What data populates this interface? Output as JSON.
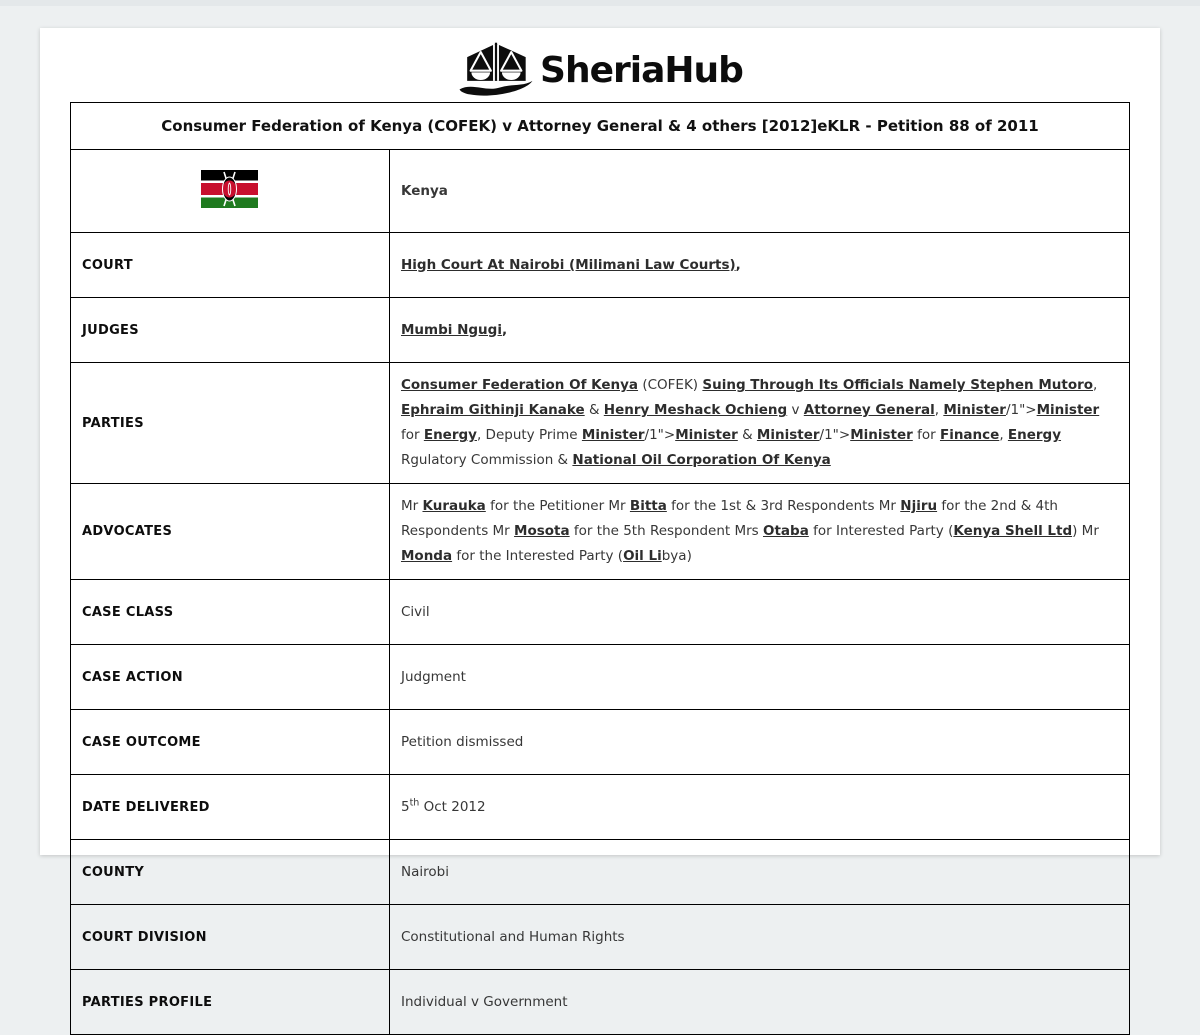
{
  "page": {
    "background_color": "#edf0f1",
    "card_color": "#ffffff",
    "table_border_color": "#000000",
    "link_color": "#2d2d2d",
    "text_color": "#373737"
  },
  "brand": {
    "name": "SheriaHub",
    "logo_icon": "scales-of-justice-boat-icon",
    "color": "#0c0c0c"
  },
  "case_header": {
    "title": "Consumer Federation of Kenya (COFEK) v Attorney General & 4 others [2012]eKLR - Petition 88 of 2011"
  },
  "country": {
    "name": "Kenya",
    "flag_icon": "kenya-flag",
    "flag_colors": {
      "black": "#000000",
      "white": "#ffffff",
      "red": "#c8102e",
      "green": "#1f7a1f"
    }
  },
  "details": {
    "rows": [
      {
        "id": "court",
        "key": "COURT",
        "segments": [
          {
            "t": "High Court At Nairobi (Milimani Law Courts)",
            "link": true
          },
          {
            "t": ",",
            "bold": true
          }
        ]
      },
      {
        "id": "judges",
        "key": "JUDGES",
        "segments": [
          {
            "t": "Mumbi Ngugi",
            "link": true
          },
          {
            "t": ",",
            "bold": true
          }
        ]
      },
      {
        "id": "parties",
        "key": "PARTIES",
        "segments": [
          {
            "t": "Consumer Federation Of Kenya",
            "link": true
          },
          {
            "t": " (COFEK) "
          },
          {
            "t": "Suing Through Its Officials Namely Stephen Mutoro",
            "link": true
          },
          {
            "t": ", "
          },
          {
            "t": "Ephraim Githinji Kanake",
            "link": true
          },
          {
            "t": " & "
          },
          {
            "t": "Henry Meshack Ochieng",
            "link": true
          },
          {
            "t": " v "
          },
          {
            "t": "Attorney General",
            "link": true
          },
          {
            "t": ", "
          },
          {
            "t": "Minister",
            "link": true
          },
          {
            "t": "/1\">"
          },
          {
            "t": "Minister",
            "link": true
          },
          {
            "t": " for "
          },
          {
            "t": "Energy",
            "link": true
          },
          {
            "t": ", Deputy Prime "
          },
          {
            "t": "Minister",
            "link": true
          },
          {
            "t": "/1\">"
          },
          {
            "t": "Minister",
            "link": true
          },
          {
            "t": " & "
          },
          {
            "t": "Minister",
            "link": true
          },
          {
            "t": "/1\">"
          },
          {
            "t": "Minister",
            "link": true
          },
          {
            "t": " for "
          },
          {
            "t": "Finance",
            "link": true
          },
          {
            "t": ", "
          },
          {
            "t": "Energy",
            "link": true
          },
          {
            "t": " Rgulatory Commission & "
          },
          {
            "t": "National Oil Corporation Of Kenya",
            "link": true
          }
        ]
      },
      {
        "id": "advocates",
        "key": "ADVOCATES",
        "segments": [
          {
            "t": "Mr "
          },
          {
            "t": "Kurauka",
            "link": true
          },
          {
            "t": " for the Petitioner Mr "
          },
          {
            "t": "Bitta",
            "link": true
          },
          {
            "t": " for the 1st & 3rd Respondents Mr "
          },
          {
            "t": "Njiru",
            "link": true
          },
          {
            "t": " for the 2nd & 4th Respondents Mr "
          },
          {
            "t": "Mosota",
            "link": true
          },
          {
            "t": " for the 5th Respondent Mrs "
          },
          {
            "t": "Otaba",
            "link": true
          },
          {
            "t": " for Interested Party ("
          },
          {
            "t": "Kenya Shell Ltd",
            "link": true
          },
          {
            "t": ") Mr "
          },
          {
            "t": "Monda",
            "link": true
          },
          {
            "t": " for the Interested Party ("
          },
          {
            "t": "Oil Li",
            "link": true
          },
          {
            "t": "bya)"
          }
        ]
      },
      {
        "id": "case-class",
        "key": "CASE CLASS",
        "segments": [
          {
            "t": "Civil"
          }
        ]
      },
      {
        "id": "case-action",
        "key": "CASE ACTION",
        "segments": [
          {
            "t": "Judgment"
          }
        ]
      },
      {
        "id": "case-outcome",
        "key": "CASE OUTCOME",
        "segments": [
          {
            "t": "Petition dismissed"
          }
        ]
      },
      {
        "id": "date-delivered",
        "key": "DATE DELIVERED",
        "segments": [
          {
            "t": "5"
          },
          {
            "t": "th",
            "sup": true
          },
          {
            "t": " Oct 2012"
          }
        ]
      },
      {
        "id": "county",
        "key": "COUNTY",
        "segments": [
          {
            "t": "Nairobi"
          }
        ]
      },
      {
        "id": "court-division",
        "key": "COURT DIVISION",
        "segments": [
          {
            "t": "Constitutional and Human Rights"
          }
        ]
      },
      {
        "id": "parties-profile",
        "key": "PARTIES PROFILE",
        "segments": [
          {
            "t": "Individual v Government"
          }
        ]
      }
    ]
  }
}
